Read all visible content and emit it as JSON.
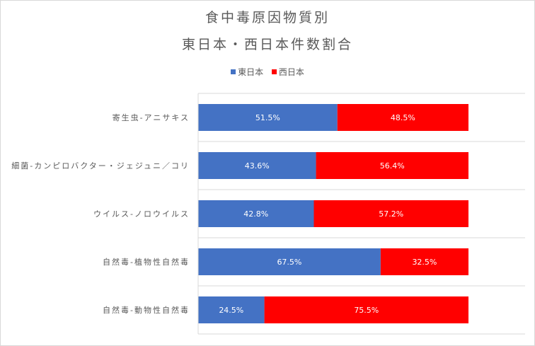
{
  "chart_data": {
    "type": "bar",
    "orientation": "horizontal",
    "stacked": "100%",
    "title": [
      "食中毒原因物質別",
      "東日本・西日本件数割合"
    ],
    "categories": [
      "寄生虫-アニサキス",
      "細菌-カンピロバクター・ジェジュニ／コリ",
      "ウイルス-ノロウイルス",
      "自然毒-植物性自然毒",
      "自然毒-動物性自然毒"
    ],
    "series": [
      {
        "name": "東日本",
        "color": "#4472c4",
        "values": [
          51.5,
          43.6,
          42.8,
          67.5,
          24.5
        ],
        "labels": [
          "51.5%",
          "43.6%",
          "42.8%",
          "67.5%",
          "24.5%"
        ]
      },
      {
        "name": "西日本",
        "color": "#ff0000",
        "values": [
          48.5,
          56.4,
          57.2,
          32.5,
          75.5
        ],
        "labels": [
          "48.5%",
          "56.4%",
          "57.2%",
          "32.5%",
          "75.5%"
        ]
      }
    ],
    "xlim": [
      0,
      100
    ],
    "grid": true,
    "legend_position": "top"
  }
}
